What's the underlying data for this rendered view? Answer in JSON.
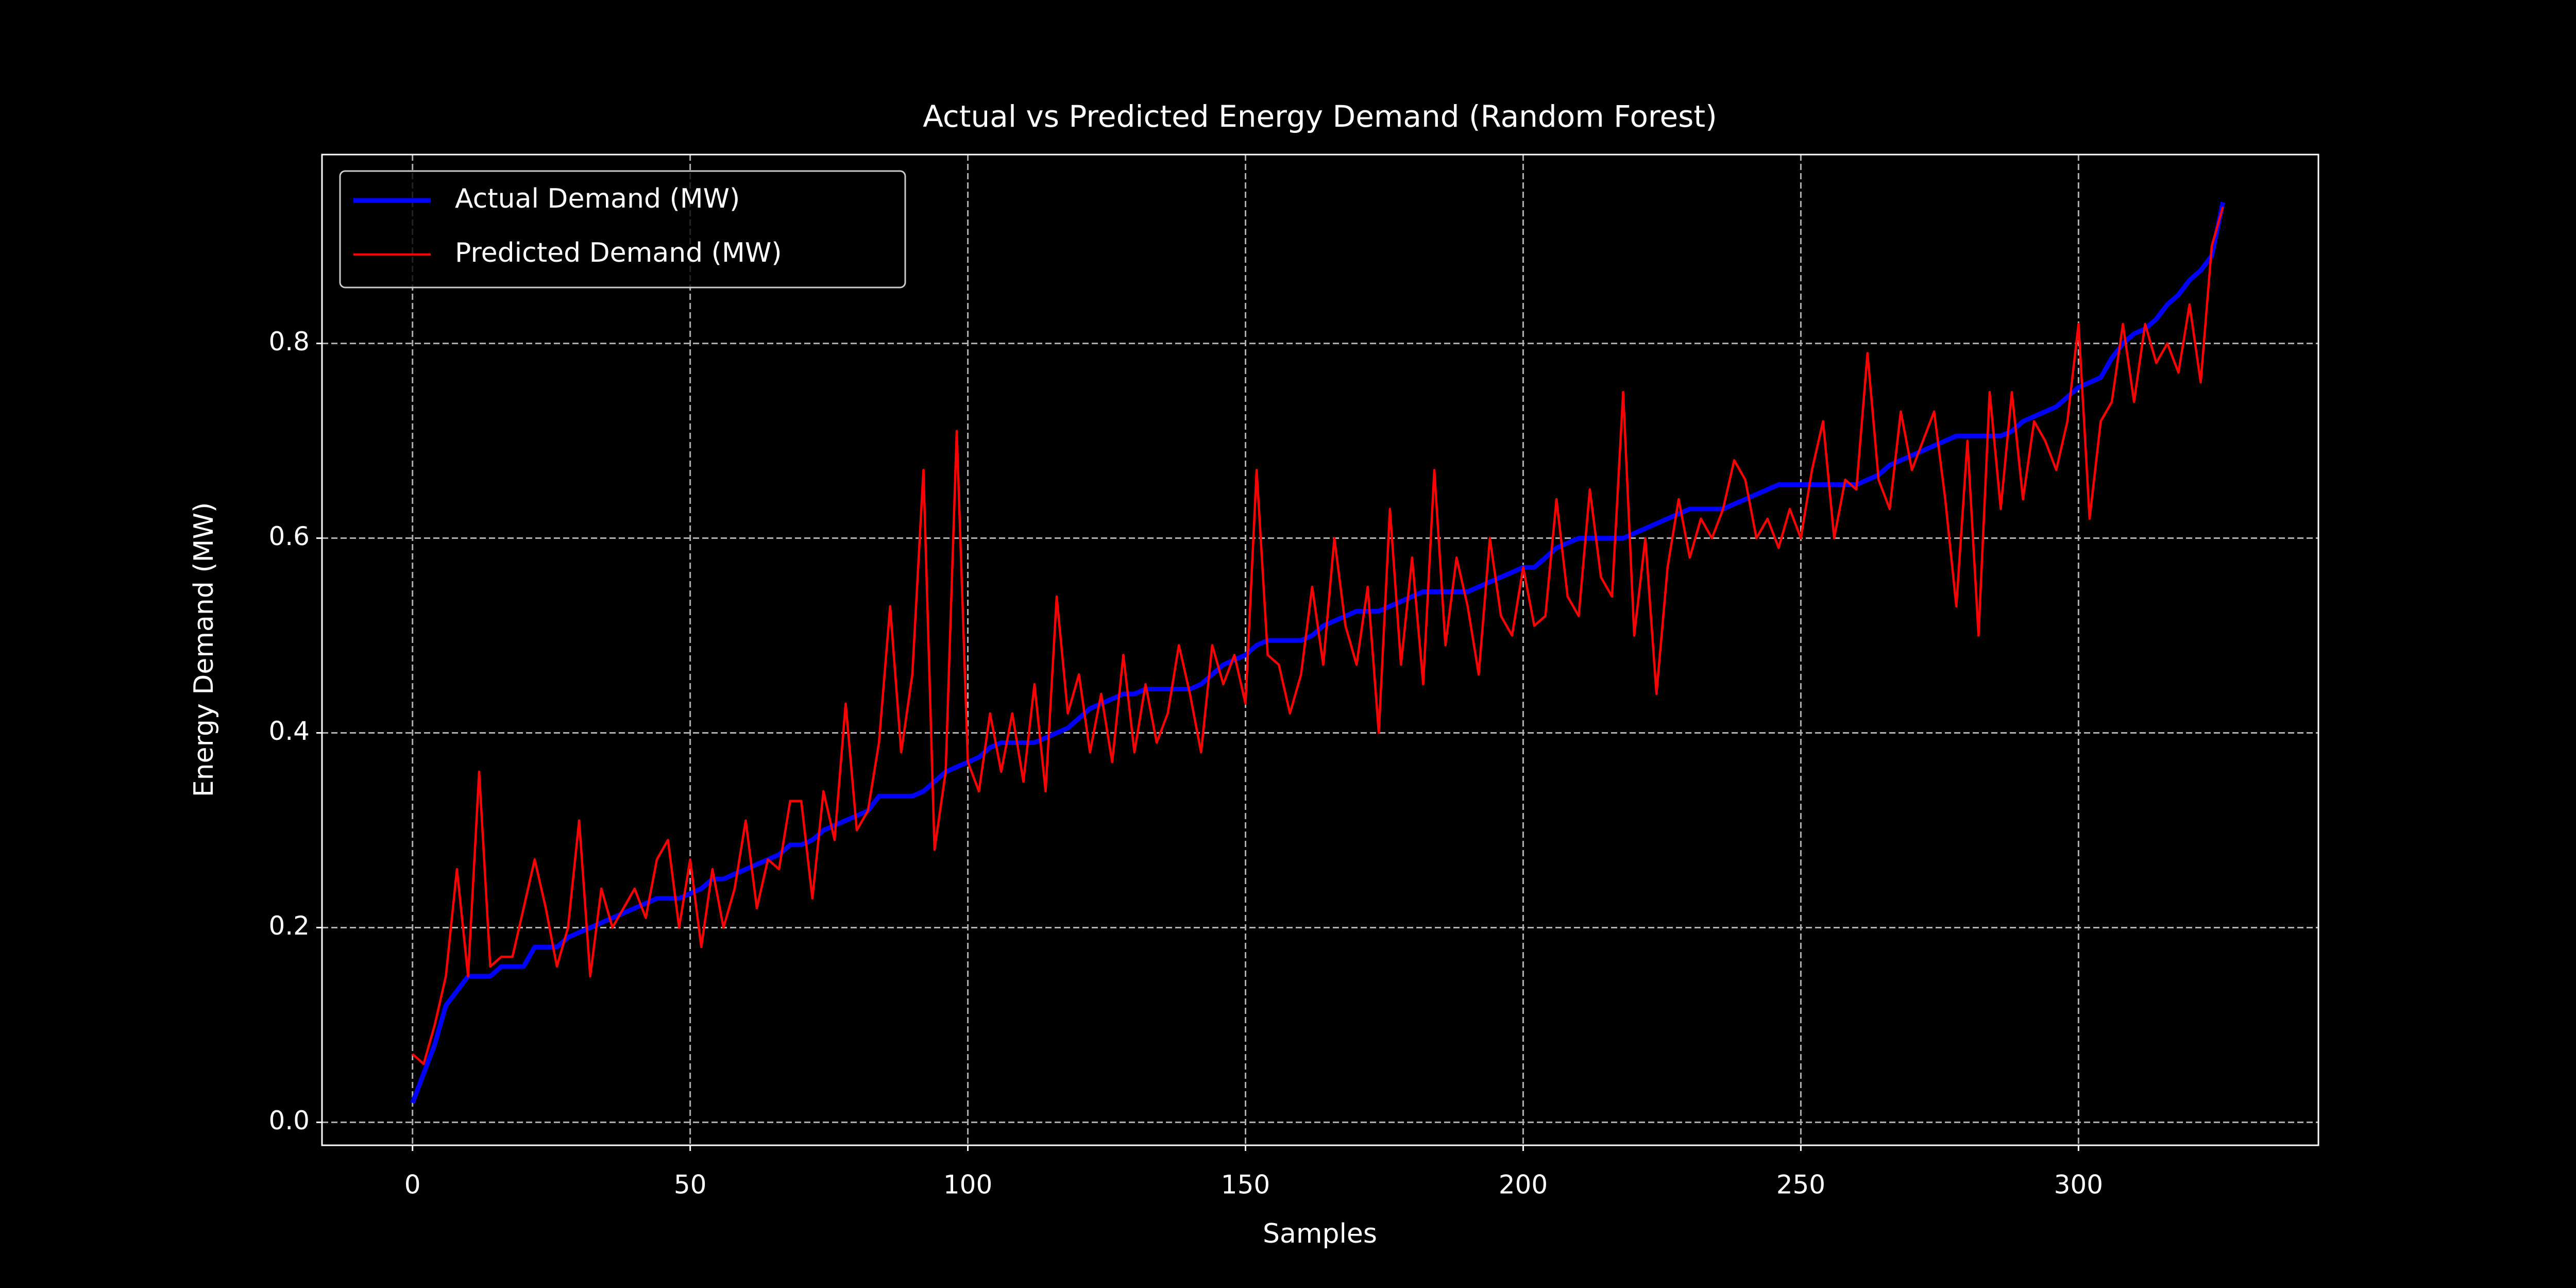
{
  "chart_data": {
    "type": "line",
    "title": "Actual vs Predicted Energy Demand (Random Forest)",
    "x_label": "Samples",
    "y_label": "Energy Demand (MW)",
    "x": [
      0,
      2,
      4,
      6,
      8,
      10,
      12,
      14,
      16,
      18,
      20,
      22,
      24,
      26,
      28,
      30,
      32,
      34,
      36,
      38,
      40,
      42,
      44,
      46,
      48,
      50,
      52,
      54,
      56,
      58,
      60,
      62,
      64,
      66,
      68,
      70,
      72,
      74,
      76,
      78,
      80,
      82,
      84,
      86,
      88,
      90,
      92,
      94,
      96,
      98,
      100,
      102,
      104,
      106,
      108,
      110,
      112,
      114,
      116,
      118,
      120,
      122,
      124,
      126,
      128,
      130,
      132,
      134,
      136,
      138,
      140,
      142,
      144,
      146,
      148,
      150,
      152,
      154,
      156,
      158,
      160,
      162,
      164,
      166,
      168,
      170,
      172,
      174,
      176,
      178,
      180,
      182,
      184,
      186,
      188,
      190,
      192,
      194,
      196,
      198,
      200,
      202,
      204,
      206,
      208,
      210,
      212,
      214,
      216,
      218,
      220,
      222,
      224,
      226,
      228,
      230,
      232,
      234,
      236,
      238,
      240,
      242,
      244,
      246,
      248,
      250,
      252,
      254,
      256,
      258,
      260,
      262,
      264,
      266,
      268,
      270,
      272,
      274,
      276,
      278,
      280,
      282,
      284,
      286,
      288,
      290,
      292,
      294,
      296,
      298,
      300,
      302,
      304,
      306,
      308,
      310,
      312,
      314,
      316,
      318,
      320,
      322,
      324,
      326
    ],
    "series": [
      {
        "name": "Actual Demand (MW)",
        "color": "#0000ff",
        "values": [
          0.02,
          0.05,
          0.08,
          0.12,
          0.135,
          0.15,
          0.15,
          0.15,
          0.16,
          0.16,
          0.16,
          0.18,
          0.18,
          0.18,
          0.19,
          0.195,
          0.2,
          0.205,
          0.21,
          0.215,
          0.22,
          0.225,
          0.23,
          0.23,
          0.23,
          0.235,
          0.24,
          0.25,
          0.25,
          0.255,
          0.26,
          0.265,
          0.27,
          0.275,
          0.285,
          0.285,
          0.29,
          0.3,
          0.305,
          0.31,
          0.315,
          0.32,
          0.335,
          0.335,
          0.335,
          0.335,
          0.34,
          0.35,
          0.36,
          0.365,
          0.37,
          0.375,
          0.385,
          0.39,
          0.39,
          0.39,
          0.39,
          0.395,
          0.4,
          0.405,
          0.415,
          0.425,
          0.43,
          0.435,
          0.44,
          0.44,
          0.445,
          0.445,
          0.445,
          0.445,
          0.445,
          0.45,
          0.46,
          0.47,
          0.475,
          0.48,
          0.49,
          0.495,
          0.495,
          0.495,
          0.495,
          0.5,
          0.51,
          0.515,
          0.52,
          0.525,
          0.525,
          0.525,
          0.53,
          0.535,
          0.54,
          0.545,
          0.545,
          0.545,
          0.545,
          0.545,
          0.55,
          0.555,
          0.56,
          0.565,
          0.57,
          0.57,
          0.58,
          0.59,
          0.595,
          0.6,
          0.6,
          0.6,
          0.6,
          0.6,
          0.605,
          0.61,
          0.615,
          0.62,
          0.625,
          0.63,
          0.63,
          0.63,
          0.63,
          0.635,
          0.64,
          0.645,
          0.65,
          0.655,
          0.655,
          0.655,
          0.655,
          0.655,
          0.655,
          0.655,
          0.655,
          0.66,
          0.665,
          0.675,
          0.68,
          0.685,
          0.69,
          0.695,
          0.7,
          0.705,
          0.705,
          0.705,
          0.705,
          0.705,
          0.71,
          0.72,
          0.725,
          0.73,
          0.735,
          0.745,
          0.755,
          0.76,
          0.765,
          0.785,
          0.8,
          0.81,
          0.815,
          0.825,
          0.84,
          0.85,
          0.865,
          0.875,
          0.89,
          0.945
        ]
      },
      {
        "name": "Predicted Demand (MW)",
        "color": "#ff0000",
        "values": [
          0.07,
          0.06,
          0.1,
          0.15,
          0.26,
          0.15,
          0.36,
          0.16,
          0.17,
          0.17,
          0.22,
          0.27,
          0.22,
          0.16,
          0.2,
          0.31,
          0.15,
          0.24,
          0.2,
          0.22,
          0.24,
          0.21,
          0.27,
          0.29,
          0.2,
          0.27,
          0.18,
          0.26,
          0.2,
          0.24,
          0.31,
          0.22,
          0.27,
          0.26,
          0.33,
          0.33,
          0.23,
          0.34,
          0.29,
          0.43,
          0.3,
          0.32,
          0.39,
          0.53,
          0.38,
          0.46,
          0.67,
          0.28,
          0.36,
          0.71,
          0.37,
          0.34,
          0.42,
          0.36,
          0.42,
          0.35,
          0.45,
          0.34,
          0.54,
          0.42,
          0.46,
          0.38,
          0.44,
          0.37,
          0.48,
          0.38,
          0.45,
          0.39,
          0.42,
          0.49,
          0.44,
          0.38,
          0.49,
          0.45,
          0.48,
          0.43,
          0.67,
          0.48,
          0.47,
          0.42,
          0.46,
          0.55,
          0.47,
          0.6,
          0.51,
          0.47,
          0.55,
          0.4,
          0.63,
          0.47,
          0.58,
          0.45,
          0.67,
          0.49,
          0.58,
          0.53,
          0.46,
          0.6,
          0.52,
          0.5,
          0.57,
          0.51,
          0.52,
          0.64,
          0.54,
          0.52,
          0.65,
          0.56,
          0.54,
          0.75,
          0.5,
          0.6,
          0.44,
          0.57,
          0.64,
          0.58,
          0.62,
          0.6,
          0.63,
          0.68,
          0.66,
          0.6,
          0.62,
          0.59,
          0.63,
          0.6,
          0.67,
          0.72,
          0.6,
          0.66,
          0.65,
          0.79,
          0.66,
          0.63,
          0.73,
          0.67,
          0.7,
          0.73,
          0.64,
          0.53,
          0.7,
          0.5,
          0.75,
          0.63,
          0.75,
          0.64,
          0.72,
          0.7,
          0.67,
          0.72,
          0.82,
          0.62,
          0.72,
          0.74,
          0.82,
          0.74,
          0.82,
          0.78,
          0.8,
          0.77,
          0.84,
          0.76,
          0.9,
          0.94
        ]
      }
    ],
    "xlim": [
      -16.3,
      343.2
    ],
    "ylim": [
      -0.0236,
      0.994
    ],
    "xticks": [
      0,
      50,
      100,
      150,
      200,
      250,
      300
    ],
    "yticks": [
      {
        "value": 0,
        "label": "0.0"
      },
      0.2,
      0.4,
      0.6,
      0.8
    ],
    "grid": true,
    "legend": "upper-left"
  }
}
